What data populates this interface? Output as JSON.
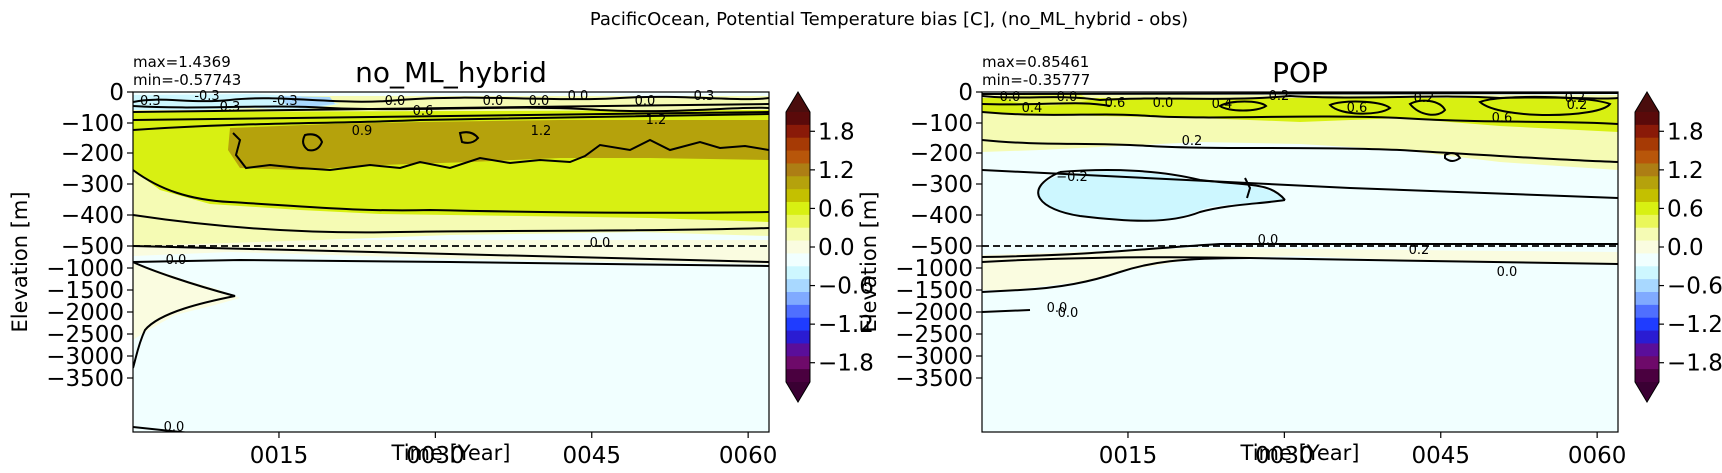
{
  "figure": {
    "suptitle": "PacificOcean, Potential Temperature bias [C], (no_ML_hybrid - obs)"
  },
  "colorbar": {
    "ticks": [
      "1.8",
      "1.2",
      "0.6",
      "0.0",
      "−0.6",
      "−1.2",
      "−1.8"
    ],
    "colors": [
      "#5a0a0a",
      "#8a1a08",
      "#a63a05",
      "#b8560a",
      "#ad7e14",
      "#b5a20c",
      "#c4c000",
      "#d8f012",
      "#eaf75a",
      "#f5fbb4",
      "#fafce0",
      "#f1ffff",
      "#cdf7ff",
      "#a8d8ff",
      "#80aaff",
      "#4f6fff",
      "#1f3cff",
      "#2a1cd2",
      "#5a0e9a",
      "#6e0a6a",
      "#4a003f"
    ]
  },
  "chart_data": [
    {
      "type": "heatmap",
      "title": "no_ML_hybrid",
      "stats": {
        "max": "max=1.4369",
        "min": "min=-0.57743"
      },
      "xlabel": "Time [Year]",
      "ylabel": "Elevation [m]",
      "xlim": [
        1,
        62
      ],
      "x_ticks": [
        "0015",
        "0030",
        "0045",
        "0060"
      ],
      "y_ticks": [
        "0",
        "−100",
        "−200",
        "−300",
        "−400",
        "−500",
        "−1000",
        "−1500",
        "−2000",
        "−2500",
        "−3000",
        "−3500"
      ],
      "contour_labels": [
        "-0.3",
        "-0.3",
        "-0.3",
        "0.3",
        "0.0",
        "0.6",
        "0.0",
        "0.0",
        "0.0",
        "0.0",
        "0.3",
        "0.9",
        "1.2",
        "1.2",
        "0.0",
        "0.0",
        "0.0"
      ],
      "colorbar_range": [
        -1.8,
        1.8
      ]
    },
    {
      "type": "heatmap",
      "title": "POP",
      "stats": {
        "max": "max=0.85461",
        "min": "min=-0.35777"
      },
      "xlabel": "Time [Year]",
      "ylabel": "Elevation [m]",
      "xlim": [
        1,
        62
      ],
      "x_ticks": [
        "0015",
        "0030",
        "0045",
        "0060"
      ],
      "y_ticks": [
        "0",
        "−100",
        "−200",
        "−300",
        "−400",
        "−500",
        "−1000",
        "−1500",
        "−2000",
        "−2500",
        "−3000",
        "−3500"
      ],
      "contour_labels": [
        "0.0",
        "0.4",
        "0.0",
        "0.6",
        "0.0",
        "0.4",
        "0.2",
        "0.6",
        "0.2",
        "0.6",
        "0.2",
        "0.2",
        "0.2",
        "0.0",
        "−0.2",
        "0.0",
        "0.2",
        "0.0",
        "0.0"
      ],
      "colorbar_range": [
        -1.8,
        1.8
      ]
    }
  ]
}
